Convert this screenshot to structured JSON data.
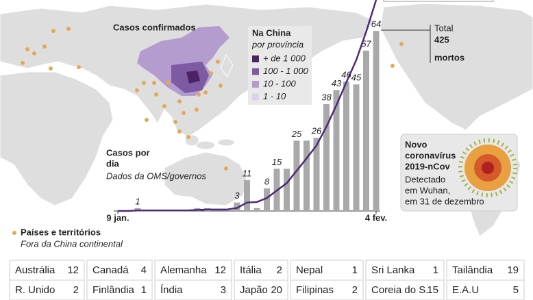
{
  "map": {
    "title": "Casos confirmados",
    "legend": {
      "title": "Na China",
      "subtitle": "por província",
      "items": [
        {
          "label": "+ de 1 000",
          "color": "#4b2366"
        },
        {
          "label": "100 - 1 000",
          "color": "#7e5aa3"
        },
        {
          "label": "10 - 100",
          "color": "#b49ccf"
        },
        {
          "label": "1 - 10",
          "color": "#ddd2ea"
        }
      ]
    },
    "dots_legend": {
      "title": "Países e territórios",
      "subtitle": "Fora da China continental",
      "color": "#e3a857"
    }
  },
  "chart_data": {
    "type": "bar",
    "title": [
      "Casos por",
      "dia"
    ],
    "subtitle": "Dados da OMS/governos",
    "categories": [
      "9 jan.",
      null,
      null,
      null,
      null,
      null,
      null,
      null,
      null,
      null,
      null,
      null,
      null,
      null,
      null,
      null,
      null,
      null,
      null,
      null,
      null,
      null,
      null,
      null,
      null,
      null,
      "4 fev."
    ],
    "series": [
      {
        "color": "#a9a9a9",
        "values": [
          0,
          0,
          1,
          0,
          0,
          0,
          0,
          0,
          1,
          1,
          0,
          0,
          3,
          11,
          1,
          8,
          15,
          15,
          25,
          25,
          26,
          38,
          43,
          46,
          45,
          57,
          64
        ],
        "value_labels": [
          null,
          null,
          "1",
          null,
          null,
          null,
          null,
          null,
          null,
          null,
          null,
          null,
          "3",
          "11",
          null,
          "8",
          "15",
          null,
          "25",
          null,
          "26",
          "38",
          "43",
          "46",
          "45",
          "57",
          "64"
        ]
      },
      {
        "type": "line",
        "axis": "y2",
        "color": "#4b2a7a",
        "values": [
          0,
          0,
          1,
          1,
          1,
          1,
          1,
          1,
          2,
          3,
          3,
          3,
          6,
          17,
          18,
          26,
          41,
          56,
          81,
          106,
          132,
          170,
          213,
          259,
          304,
          361,
          425
        ]
      }
    ],
    "ylim": [
      0,
      75
    ],
    "y2lim": [
      0,
      425
    ],
    "annotation": [
      "Total",
      "425",
      "mortos"
    ]
  },
  "virus": {
    "title": [
      "Novo",
      "coronavírus",
      "2019-nCov"
    ],
    "text": [
      "Detectado",
      "em Wuhan,",
      "em 31 de dezembro"
    ]
  },
  "countries": {
    "rows": [
      [
        {
          "name": "Austrália",
          "count": 12
        },
        {
          "name": "Canadá",
          "count": 4
        },
        {
          "name": "Alemanha",
          "count": 12
        },
        {
          "name": "Itália",
          "count": 2
        },
        {
          "name": "Nepal",
          "count": 1
        },
        {
          "name": "Sri Lanka",
          "count": 1
        },
        {
          "name": "Tailândia",
          "count": 19
        }
      ],
      [
        {
          "name": "R. Unido",
          "count": 2
        },
        {
          "name": "Finlândia",
          "count": 1
        },
        {
          "name": "Índia",
          "count": 3
        },
        {
          "name": "Japão",
          "count": 20
        },
        {
          "name": "Filipinas",
          "count": 2
        },
        {
          "name": "Coreia do S.",
          "count": 15
        },
        {
          "name": "E.A.U",
          "count": 5
        }
      ]
    ]
  }
}
